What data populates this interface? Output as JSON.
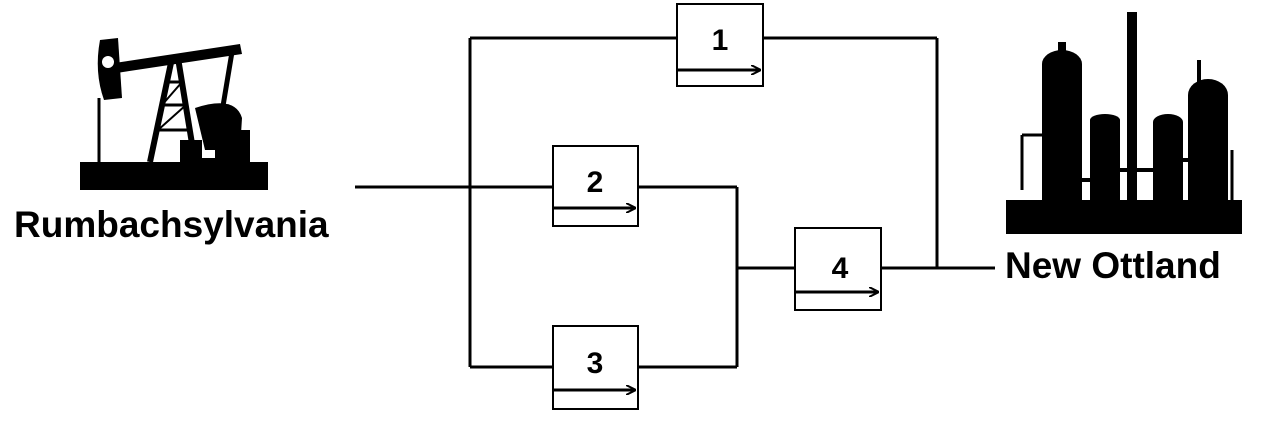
{
  "source": {
    "name": "Rumbachsylvania",
    "icon": "oil-pump-jack-icon"
  },
  "destination": {
    "name": "New Ottland",
    "icon": "refinery-icon"
  },
  "pipelines": [
    {
      "id": "1",
      "direction": "left-to-right"
    },
    {
      "id": "2",
      "direction": "left-to-right"
    },
    {
      "id": "3",
      "direction": "left-to-right"
    },
    {
      "id": "4",
      "direction": "left-to-right"
    }
  ],
  "colors": {
    "line": "#000000",
    "silhouette": "#000000",
    "background": "#ffffff"
  }
}
